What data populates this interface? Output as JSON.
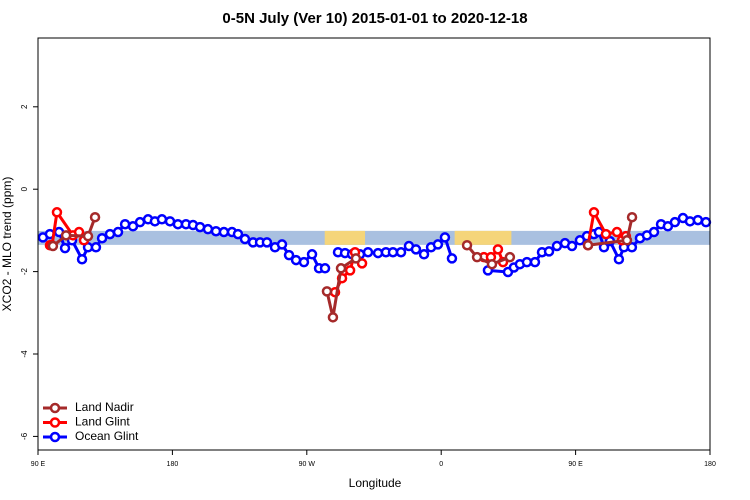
{
  "chart_data": {
    "type": "line",
    "title": "0-5N July (Ver 10)   2015-01-01 to 2020-12-18",
    "x_label": "Longitude",
    "y_label": "XCO2 - MLO trend (ppm)",
    "xlim": [
      90,
      540
    ],
    "ylim": [
      -6.33,
      3.67
    ],
    "xticks": [
      {
        "value": 90,
        "label": "90 E"
      },
      {
        "value": 180,
        "label": "180"
      },
      {
        "value": 270,
        "label": "90 W"
      },
      {
        "value": 360,
        "label": "0"
      },
      {
        "value": 450,
        "label": "90 E"
      },
      {
        "value": 540,
        "label": "180"
      }
    ],
    "yticks": [
      2,
      0,
      -2,
      -4,
      -6
    ],
    "legend": "bottom-left",
    "bands": [
      {
        "y": -1.18,
        "x": [
          90,
          540
        ],
        "color": "#a9c0e0"
      },
      {
        "y": -1.18,
        "x": [
          282,
          309
        ],
        "color": "#f5d57a"
      },
      {
        "y": -1.18,
        "x": [
          369,
          407
        ],
        "color": "#f5d57a"
      }
    ],
    "series": [
      {
        "name": "Land Nadir",
        "color": "#a52a2a",
        "x": [
          100.0,
          108.8,
          123.5,
          128.2,
          null,
          283.5,
          287.5,
          292.9,
          302.9,
          null,
          377.3,
          384.0,
          394.0,
          406.0,
          null,
          458.3,
          484.4,
          487.8
        ],
        "values": [
          -1.38,
          -1.12,
          -1.14,
          -0.68,
          null,
          -2.48,
          -3.11,
          -1.92,
          -1.68,
          null,
          -1.36,
          -1.65,
          -1.82,
          -1.65,
          null,
          -1.36,
          -1.24,
          -0.68
        ]
      },
      {
        "name": "Land Glint",
        "color": "#ff0000",
        "x": [
          98.0,
          99.4,
          102.7,
          113.4,
          117.5,
          120.8,
          null,
          288.9,
          293.6,
          299.0,
          302.3,
          307.0,
          null,
          388.6,
          393.3,
          398.0,
          401.4,
          null,
          458.3,
          462.3,
          470.3,
          477.7,
          481.0,
          483.7
        ],
        "values": [
          -1.36,
          -1.36,
          -0.56,
          -1.12,
          -1.04,
          -1.24,
          null,
          -2.5,
          -2.16,
          -1.97,
          -1.53,
          -1.8,
          null,
          -1.65,
          -1.65,
          -1.46,
          -1.77,
          null,
          -1.36,
          -0.56,
          -1.09,
          -1.04,
          -1.24,
          -1.14
        ]
      },
      {
        "name": "Ocean Glint",
        "color": "#0000ff",
        "x": [
          93.3,
          98.0,
          104.1,
          108.1,
          112.8,
          119.5,
          123.5,
          128.8,
          132.9,
          138.2,
          143.6,
          148.3,
          153.6,
          158.3,
          163.7,
          168.3,
          173.0,
          178.4,
          183.7,
          189.1,
          193.8,
          198.5,
          203.8,
          209.2,
          214.5,
          219.9,
          223.9,
          228.6,
          234.0,
          238.7,
          243.3,
          248.7,
          253.4,
          258.1,
          262.8,
          268.1,
          273.5,
          278.2,
          282.2,
          null,
          290.9,
          295.6,
          300.3,
          305.6,
          311.0,
          317.7,
          323.0,
          327.7,
          333.1,
          338.4,
          343.1,
          348.5,
          353.2,
          357.8,
          362.5,
          367.2,
          null,
          391.3,
          404.7,
          408.7,
          412.7,
          417.4,
          422.8,
          427.5,
          432.2,
          437.5,
          442.9,
          447.6,
          452.9,
          457.6,
          462.3,
          465.6,
          469.0,
          473.0,
          479.0,
          482.4,
          487.7,
          493.1,
          497.8,
          502.5,
          507.2,
          511.8,
          516.5,
          521.9,
          526.6,
          531.9,
          537.3
        ],
        "values": [
          -1.17,
          -1.09,
          -1.04,
          -1.43,
          -1.24,
          -1.7,
          -1.41,
          -1.41,
          -1.19,
          -1.09,
          -1.04,
          -0.85,
          -0.9,
          -0.8,
          -0.73,
          -0.78,
          -0.73,
          -0.78,
          -0.85,
          -0.85,
          -0.87,
          -0.92,
          -0.97,
          -1.02,
          -1.04,
          -1.04,
          -1.09,
          -1.21,
          -1.29,
          -1.29,
          -1.29,
          -1.41,
          -1.34,
          -1.6,
          -1.72,
          -1.77,
          -1.58,
          -1.92,
          -1.92,
          null,
          -1.53,
          -1.55,
          -1.58,
          -1.58,
          -1.53,
          -1.55,
          -1.53,
          -1.53,
          -1.53,
          -1.38,
          -1.46,
          -1.58,
          -1.41,
          -1.34,
          -1.17,
          -1.68,
          null,
          -1.97,
          -2.01,
          -1.9,
          -1.82,
          -1.77,
          -1.77,
          -1.53,
          -1.51,
          -1.38,
          -1.31,
          -1.38,
          -1.24,
          -1.14,
          -1.09,
          -1.04,
          -1.41,
          -1.26,
          -1.7,
          -1.41,
          -1.41,
          -1.19,
          -1.12,
          -1.04,
          -0.85,
          -0.9,
          -0.8,
          -0.7,
          -0.78,
          -0.75,
          -0.8
        ]
      }
    ]
  }
}
